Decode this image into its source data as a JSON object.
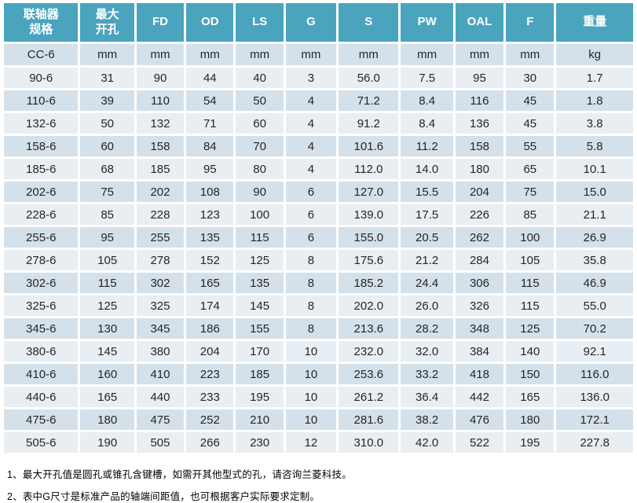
{
  "table": {
    "columns": [
      {
        "key": "spec",
        "label": "联轴器\n规格"
      },
      {
        "key": "max-bore",
        "label": "最大\n开孔"
      },
      {
        "key": "fd",
        "label": "FD"
      },
      {
        "key": "od",
        "label": "OD"
      },
      {
        "key": "ls",
        "label": "LS"
      },
      {
        "key": "g",
        "label": "G"
      },
      {
        "key": "s",
        "label": "S"
      },
      {
        "key": "pw",
        "label": "PW"
      },
      {
        "key": "oal",
        "label": "OAL"
      },
      {
        "key": "f",
        "label": "F"
      },
      {
        "key": "weight",
        "label": "重量"
      }
    ],
    "units": [
      "CC-6",
      "mm",
      "mm",
      "mm",
      "mm",
      "mm",
      "mm",
      "mm",
      "mm",
      "mm",
      "kg"
    ],
    "rows": [
      [
        "90-6",
        "31",
        "90",
        "44",
        "40",
        "3",
        "56.0",
        "7.5",
        "95",
        "30",
        "1.7"
      ],
      [
        "110-6",
        "39",
        "110",
        "54",
        "50",
        "4",
        "71.2",
        "8.4",
        "116",
        "45",
        "1.8"
      ],
      [
        "132-6",
        "50",
        "132",
        "71",
        "60",
        "4",
        "91.2",
        "8.4",
        "136",
        "45",
        "3.8"
      ],
      [
        "158-6",
        "60",
        "158",
        "84",
        "70",
        "4",
        "101.6",
        "11.2",
        "158",
        "55",
        "5.8"
      ],
      [
        "185-6",
        "68",
        "185",
        "95",
        "80",
        "4",
        "112.0",
        "14.0",
        "180",
        "65",
        "10.1"
      ],
      [
        "202-6",
        "75",
        "202",
        "108",
        "90",
        "6",
        "127.0",
        "15.5",
        "204",
        "75",
        "15.0"
      ],
      [
        "228-6",
        "85",
        "228",
        "123",
        "100",
        "6",
        "139.0",
        "17.5",
        "226",
        "85",
        "21.1"
      ],
      [
        "255-6",
        "95",
        "255",
        "135",
        "115",
        "6",
        "155.0",
        "20.5",
        "262",
        "100",
        "26.9"
      ],
      [
        "278-6",
        "105",
        "278",
        "152",
        "125",
        "8",
        "175.6",
        "21.2",
        "284",
        "105",
        "35.8"
      ],
      [
        "302-6",
        "115",
        "302",
        "165",
        "135",
        "8",
        "185.2",
        "24.4",
        "306",
        "115",
        "46.9"
      ],
      [
        "325-6",
        "125",
        "325",
        "174",
        "145",
        "8",
        "202.0",
        "26.0",
        "326",
        "115",
        "55.0"
      ],
      [
        "345-6",
        "130",
        "345",
        "186",
        "155",
        "8",
        "213.6",
        "28.2",
        "348",
        "125",
        "70.2"
      ],
      [
        "380-6",
        "145",
        "380",
        "204",
        "170",
        "10",
        "232.0",
        "32.0",
        "384",
        "140",
        "92.1"
      ],
      [
        "410-6",
        "160",
        "410",
        "223",
        "185",
        "10",
        "253.6",
        "33.2",
        "418",
        "150",
        "116.0"
      ],
      [
        "440-6",
        "165",
        "440",
        "233",
        "195",
        "10",
        "261.2",
        "36.4",
        "442",
        "165",
        "136.0"
      ],
      [
        "475-6",
        "180",
        "475",
        "252",
        "210",
        "10",
        "281.6",
        "38.2",
        "476",
        "180",
        "172.1"
      ],
      [
        "505-6",
        "190",
        "505",
        "266",
        "230",
        "12",
        "310.0",
        "42.0",
        "522",
        "195",
        "227.8"
      ]
    ]
  },
  "notes": [
    "1、最大开孔值是圆孔或锥孔含键槽，如需开其他型式的孔，请咨询兰菱科技。",
    "2、表中G尺寸是标准产品的轴端间距值，也可根据客户实际要求定制。"
  ],
  "colors": {
    "header_bg": "#4AA4BE",
    "stripe_dark": "#D4E1EA",
    "stripe_light": "#E9EEF3",
    "header_text": "#FFFFFF",
    "body_text": "#262626"
  }
}
